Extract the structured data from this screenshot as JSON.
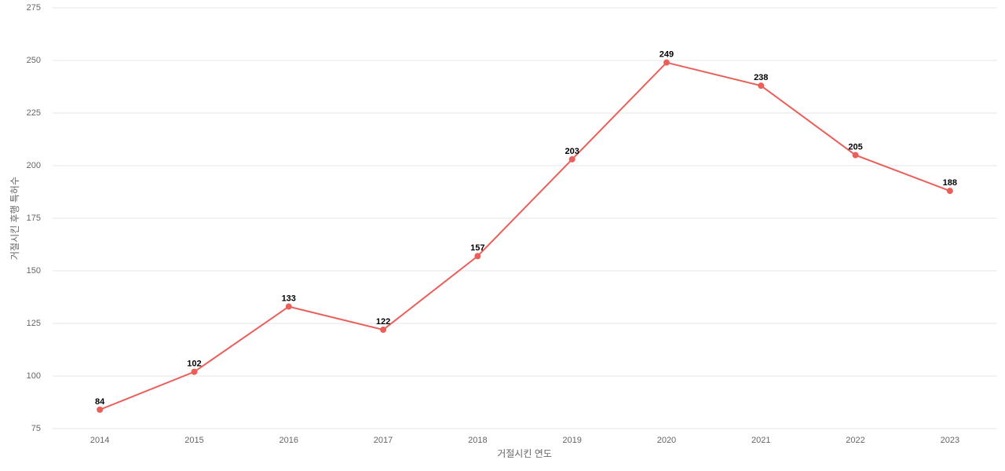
{
  "chart_data": {
    "type": "line",
    "x_label": "거절시킨 연도",
    "y_label": "거절시킨 후행 특허수",
    "categories": [
      "2014",
      "2015",
      "2016",
      "2017",
      "2018",
      "2019",
      "2020",
      "2021",
      "2022",
      "2023"
    ],
    "values": [
      84,
      102,
      133,
      122,
      157,
      203,
      249,
      238,
      205,
      188
    ],
    "color": "#ea5f5a",
    "ylim": [
      75,
      275
    ],
    "yticks": [
      75,
      100,
      125,
      150,
      175,
      200,
      225,
      250,
      275
    ],
    "grid": true
  }
}
